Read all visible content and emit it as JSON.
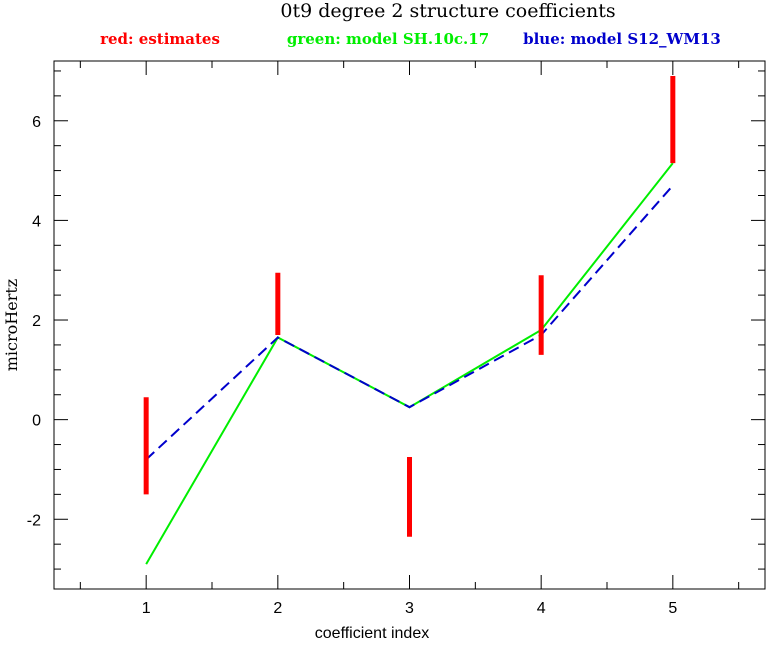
{
  "chart_data": {
    "type": "line",
    "title": "0t9 degree 2 structure coefficients",
    "legend": {
      "placement": "top",
      "entries": [
        {
          "label": "red: estimates",
          "color": "#ff0000"
        },
        {
          "label": "green: model SH.10c.17",
          "color": "#00ee00"
        },
        {
          "label": "blue: model S12_WM13",
          "color": "#0000cc"
        }
      ]
    },
    "xlabel": "coefficient index",
    "ylabel": "microHertz",
    "xlim": [
      0.3,
      5.7
    ],
    "ylim": [
      -3.4,
      7.2
    ],
    "xticks": [
      1,
      2,
      3,
      4,
      5
    ],
    "yticks": [
      -2,
      0,
      2,
      4,
      6
    ],
    "ytick_labels": [
      "-2",
      "0",
      "2",
      "4",
      "6"
    ],
    "x": [
      1,
      2,
      3,
      4,
      5
    ],
    "grid": false,
    "error_bars": {
      "name": "estimates",
      "color": "#ff0000",
      "ranges": [
        [
          -1.5,
          0.45
        ],
        [
          1.7,
          2.95
        ],
        [
          -2.35,
          -0.75
        ],
        [
          1.3,
          2.9
        ],
        [
          5.15,
          6.9
        ]
      ]
    },
    "series": [
      {
        "name": "model SH.10c.17",
        "color": "#00ee00",
        "style": "solid",
        "values": [
          -2.9,
          1.65,
          0.25,
          1.8,
          5.15
        ]
      },
      {
        "name": "model S12_WM13",
        "color": "#0000cc",
        "style": "dashed",
        "values": [
          -0.8,
          1.65,
          0.25,
          1.7,
          4.7
        ]
      }
    ]
  }
}
